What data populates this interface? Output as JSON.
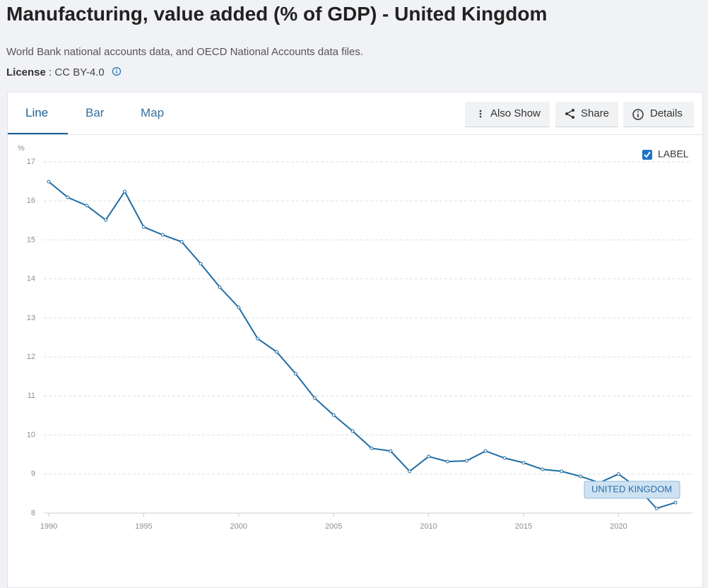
{
  "header": {
    "title": "Manufacturing, value added (% of GDP) - United Kingdom",
    "subtitle": "World Bank national accounts data, and OECD National Accounts data files.",
    "license": {
      "label": "License",
      "separator": ":",
      "value": "CC BY-4.0"
    }
  },
  "tabs": [
    "Line",
    "Bar",
    "Map"
  ],
  "buttons": [
    "Also Show",
    "Share",
    "Details"
  ],
  "chart_data": {
    "type": "line",
    "y_label": "%",
    "label_toggle": "LABEL",
    "x": [
      1990,
      1991,
      1992,
      1993,
      1994,
      1995,
      1996,
      1997,
      1998,
      1999,
      2000,
      2001,
      2002,
      2003,
      2004,
      2005,
      2006,
      2007,
      2008,
      2009,
      2010,
      2011,
      2012,
      2013,
      2014,
      2015,
      2016,
      2017,
      2018,
      2019,
      2020,
      2021,
      2022,
      2023
    ],
    "series": [
      {
        "name": "UNITED KINGDOM",
        "color": "#1f6ca3",
        "values": [
          16.49,
          16.09,
          15.88,
          15.51,
          16.24,
          15.33,
          15.13,
          14.95,
          14.39,
          13.79,
          13.27,
          12.47,
          12.13,
          11.57,
          10.95,
          10.51,
          10.1,
          9.66,
          9.59,
          9.07,
          9.45,
          9.32,
          9.34,
          9.59,
          9.41,
          9.29,
          9.12,
          9.07,
          8.94,
          8.78,
          9.0,
          8.65,
          8.12,
          8.27
        ]
      }
    ],
    "xlim": [
      1990,
      2023
    ],
    "xticks": [
      1990,
      1995,
      2000,
      2005,
      2010,
      2015,
      2020
    ],
    "ylim": [
      8,
      17
    ],
    "yticks": [
      8,
      9,
      10,
      11,
      12,
      13,
      14,
      15,
      16,
      17
    ],
    "grid": true
  }
}
